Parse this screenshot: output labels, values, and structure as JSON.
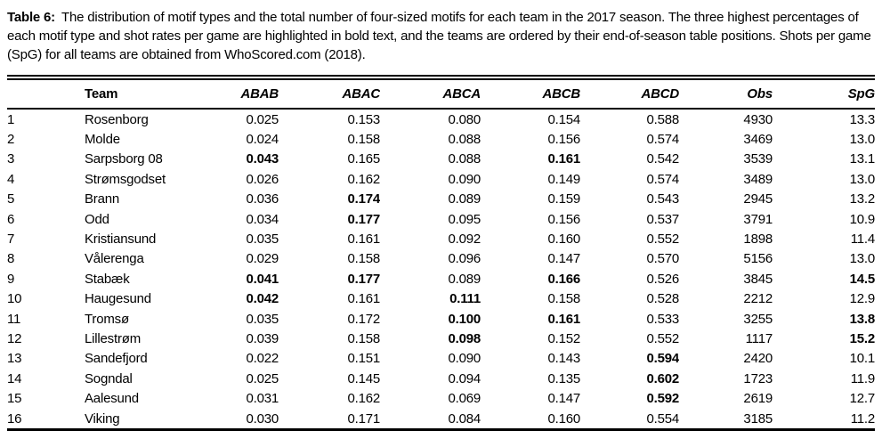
{
  "caption": {
    "label": "Table 6:",
    "text": "The distribution of motif types and the total number of four-sized motifs for each team in the 2017 season. The three highest percentages of each motif type and shot rates per game are highlighted in bold text, and the teams are ordered by their end-of-season table positions. Shots per game (SpG) for all teams are obtained from WhoScored.com (2018)."
  },
  "table": {
    "columns": [
      {
        "key": "rank",
        "label": "",
        "italic": false
      },
      {
        "key": "team",
        "label": "Team",
        "italic": false
      },
      {
        "key": "abab",
        "label": "ABAB",
        "italic": true
      },
      {
        "key": "abac",
        "label": "ABAC",
        "italic": true
      },
      {
        "key": "abca",
        "label": "ABCA",
        "italic": true
      },
      {
        "key": "abcb",
        "label": "ABCB",
        "italic": true
      },
      {
        "key": "abcd",
        "label": "ABCD",
        "italic": true
      },
      {
        "key": "obs",
        "label": "Obs",
        "italic": true
      },
      {
        "key": "spg",
        "label": "SpG",
        "italic": true
      }
    ],
    "rows": [
      {
        "rank": "1",
        "team": "Rosenborg",
        "abab": "0.025",
        "abac": "0.153",
        "abca": "0.080",
        "abcb": "0.154",
        "abcd": "0.588",
        "obs": "4930",
        "spg": "13.3",
        "bold": []
      },
      {
        "rank": "2",
        "team": "Molde",
        "abab": "0.024",
        "abac": "0.158",
        "abca": "0.088",
        "abcb": "0.156",
        "abcd": "0.574",
        "obs": "3469",
        "spg": "13.0",
        "bold": []
      },
      {
        "rank": "3",
        "team": "Sarpsborg 08",
        "abab": "0.043",
        "abac": "0.165",
        "abca": "0.088",
        "abcb": "0.161",
        "abcd": "0.542",
        "obs": "3539",
        "spg": "13.1",
        "bold": [
          "abab",
          "abcb"
        ]
      },
      {
        "rank": "4",
        "team": "Strømsgodset",
        "abab": "0.026",
        "abac": "0.162",
        "abca": "0.090",
        "abcb": "0.149",
        "abcd": "0.574",
        "obs": "3489",
        "spg": "13.0",
        "bold": []
      },
      {
        "rank": "5",
        "team": "Brann",
        "abab": "0.036",
        "abac": "0.174",
        "abca": "0.089",
        "abcb": "0.159",
        "abcd": "0.543",
        "obs": "2945",
        "spg": "13.2",
        "bold": [
          "abac"
        ]
      },
      {
        "rank": "6",
        "team": "Odd",
        "abab": "0.034",
        "abac": "0.177",
        "abca": "0.095",
        "abcb": "0.156",
        "abcd": "0.537",
        "obs": "3791",
        "spg": "10.9",
        "bold": [
          "abac"
        ]
      },
      {
        "rank": "7",
        "team": "Kristiansund",
        "abab": "0.035",
        "abac": "0.161",
        "abca": "0.092",
        "abcb": "0.160",
        "abcd": "0.552",
        "obs": "1898",
        "spg": "11.4",
        "bold": []
      },
      {
        "rank": "8",
        "team": "Vålerenga",
        "abab": "0.029",
        "abac": "0.158",
        "abca": "0.096",
        "abcb": "0.147",
        "abcd": "0.570",
        "obs": "5156",
        "spg": "13.0",
        "bold": []
      },
      {
        "rank": "9",
        "team": "Stabæk",
        "abab": "0.041",
        "abac": "0.177",
        "abca": "0.089",
        "abcb": "0.166",
        "abcd": "0.526",
        "obs": "3845",
        "spg": "14.5",
        "bold": [
          "abab",
          "abac",
          "abcb",
          "spg"
        ]
      },
      {
        "rank": "10",
        "team": "Haugesund",
        "abab": "0.042",
        "abac": "0.161",
        "abca": "0.111",
        "abcb": "0.158",
        "abcd": "0.528",
        "obs": "2212",
        "spg": "12.9",
        "bold": [
          "abab",
          "abca"
        ]
      },
      {
        "rank": "11",
        "team": "Tromsø",
        "abab": "0.035",
        "abac": "0.172",
        "abca": "0.100",
        "abcb": "0.161",
        "abcd": "0.533",
        "obs": "3255",
        "spg": "13.8",
        "bold": [
          "abca",
          "abcb",
          "spg"
        ]
      },
      {
        "rank": "12",
        "team": "Lillestrøm",
        "abab": "0.039",
        "abac": "0.158",
        "abca": "0.098",
        "abcb": "0.152",
        "abcd": "0.552",
        "obs": "1117",
        "spg": "15.2",
        "bold": [
          "abca",
          "spg"
        ]
      },
      {
        "rank": "13",
        "team": "Sandefjord",
        "abab": "0.022",
        "abac": "0.151",
        "abca": "0.090",
        "abcb": "0.143",
        "abcd": "0.594",
        "obs": "2420",
        "spg": "10.1",
        "bold": [
          "abcd"
        ]
      },
      {
        "rank": "14",
        "team": "Sogndal",
        "abab": "0.025",
        "abac": "0.145",
        "abca": "0.094",
        "abcb": "0.135",
        "abcd": "0.602",
        "obs": "1723",
        "spg": "11.9",
        "bold": [
          "abcd"
        ]
      },
      {
        "rank": "15",
        "team": "Aalesund",
        "abab": "0.031",
        "abac": "0.162",
        "abca": "0.069",
        "abcb": "0.147",
        "abcd": "0.592",
        "obs": "2619",
        "spg": "12.7",
        "bold": [
          "abcd"
        ]
      },
      {
        "rank": "16",
        "team": "Viking",
        "abab": "0.030",
        "abac": "0.171",
        "abca": "0.084",
        "abcb": "0.160",
        "abcd": "0.554",
        "obs": "3185",
        "spg": "11.2",
        "bold": []
      }
    ]
  },
  "colors": {
    "text": "#000000",
    "background": "#ffffff",
    "rule": "#000000"
  }
}
